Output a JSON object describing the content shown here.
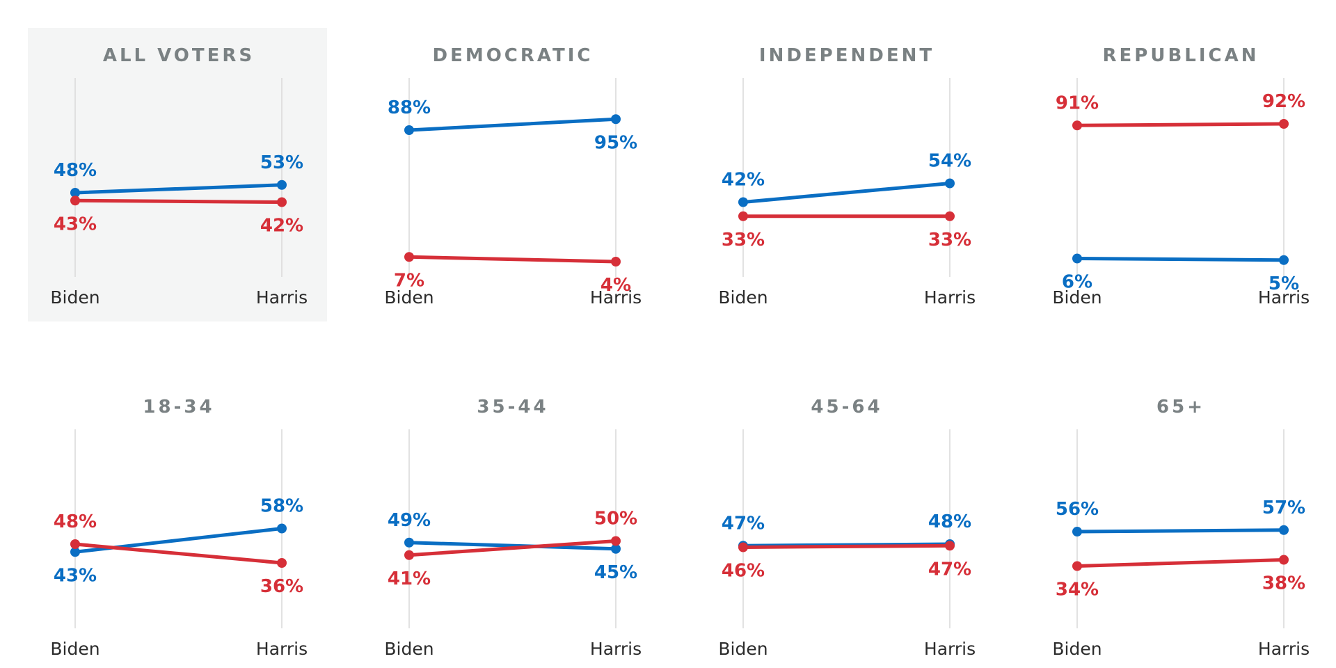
{
  "colors": {
    "dem": "#0a6ec3",
    "rep": "#d62f38",
    "highlight_bg": "#f4f5f5",
    "title": "#7a8183",
    "gridline": "#d9d9d9"
  },
  "chart_data": [
    {
      "type": "line",
      "title": "ALL VOTERS",
      "highlighted": true,
      "categories": [
        "Biden",
        "Harris"
      ],
      "series": [
        {
          "party": "dem",
          "values": [
            48,
            53
          ]
        },
        {
          "party": "rep",
          "values": [
            43,
            42
          ]
        }
      ],
      "labels": {
        "dem": [
          "48%",
          "53%"
        ],
        "rep": [
          "43%",
          "42%"
        ]
      }
    },
    {
      "type": "line",
      "title": "DEMOCRATIC",
      "categories": [
        "Biden",
        "Harris"
      ],
      "series": [
        {
          "party": "dem",
          "values": [
            88,
            95
          ]
        },
        {
          "party": "rep",
          "values": [
            7,
            4
          ]
        }
      ],
      "labels": {
        "dem": [
          "88%",
          "95%"
        ],
        "rep": [
          "7%",
          "4%"
        ]
      }
    },
    {
      "type": "line",
      "title": "INDEPENDENT",
      "categories": [
        "Biden",
        "Harris"
      ],
      "series": [
        {
          "party": "dem",
          "values": [
            42,
            54
          ]
        },
        {
          "party": "rep",
          "values": [
            33,
            33
          ]
        }
      ],
      "labels": {
        "dem": [
          "42%",
          "54%"
        ],
        "rep": [
          "33%",
          "33%"
        ]
      }
    },
    {
      "type": "line",
      "title": "REPUBLICAN",
      "categories": [
        "Biden",
        "Harris"
      ],
      "series": [
        {
          "party": "dem",
          "values": [
            6,
            5
          ]
        },
        {
          "party": "rep",
          "values": [
            91,
            92
          ]
        }
      ],
      "labels": {
        "dem": [
          "6%",
          "5%"
        ],
        "rep": [
          "91%",
          "92%"
        ]
      }
    },
    {
      "type": "line",
      "title": "18-34",
      "categories": [
        "Biden",
        "Harris"
      ],
      "series": [
        {
          "party": "dem",
          "values": [
            43,
            58
          ]
        },
        {
          "party": "rep",
          "values": [
            48,
            36
          ]
        }
      ],
      "labels": {
        "dem": [
          "43%",
          "58%"
        ],
        "rep": [
          "48%",
          "36%"
        ]
      }
    },
    {
      "type": "line",
      "title": "35-44",
      "categories": [
        "Biden",
        "Harris"
      ],
      "series": [
        {
          "party": "dem",
          "values": [
            49,
            45
          ]
        },
        {
          "party": "rep",
          "values": [
            41,
            50
          ]
        }
      ],
      "labels": {
        "dem": [
          "49%",
          "45%"
        ],
        "rep": [
          "41%",
          "50%"
        ]
      }
    },
    {
      "type": "line",
      "title": "45-64",
      "categories": [
        "Biden",
        "Harris"
      ],
      "series": [
        {
          "party": "dem",
          "values": [
            47,
            48
          ]
        },
        {
          "party": "rep",
          "values": [
            46,
            47
          ]
        }
      ],
      "labels": {
        "dem": [
          "47%",
          "48%"
        ],
        "rep": [
          "46%",
          "47%"
        ]
      }
    },
    {
      "type": "line",
      "title": "65+",
      "categories": [
        "Biden",
        "Harris"
      ],
      "series": [
        {
          "party": "dem",
          "values": [
            56,
            57
          ]
        },
        {
          "party": "rep",
          "values": [
            34,
            38
          ]
        }
      ],
      "labels": {
        "dem": [
          "56%",
          "57%"
        ],
        "rep": [
          "34%",
          "38%"
        ]
      }
    }
  ]
}
